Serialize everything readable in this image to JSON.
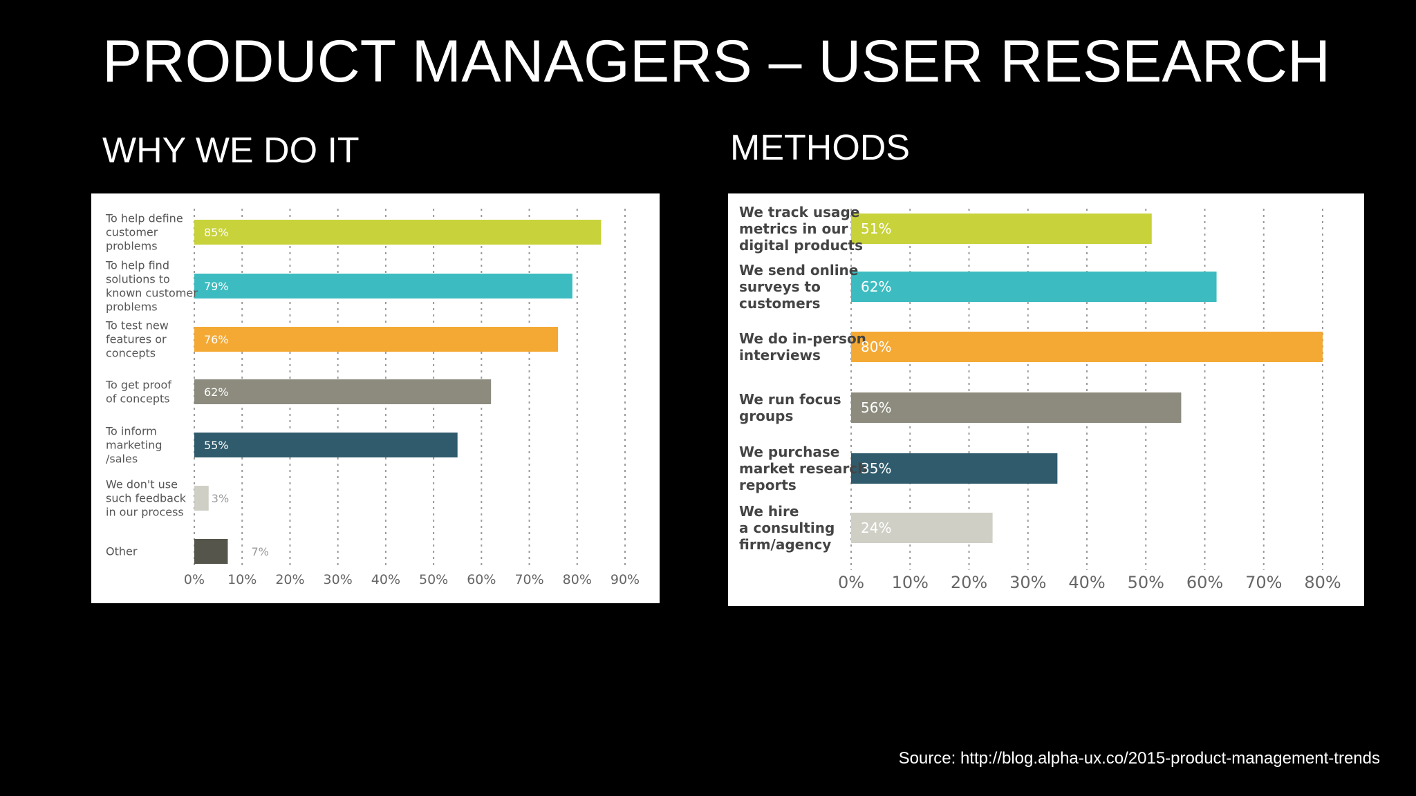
{
  "title": "PRODUCT MANAGERS – USER RESEARCH",
  "left_heading": "WHY WE DO IT",
  "right_heading": "METHODS",
  "source": "Source: http://blog.alpha-ux.co/2015-product-management-trends",
  "colors": {
    "background": "#000000",
    "panel": "#ffffff",
    "grid": "#9a9a9a",
    "axis_text": "#666666"
  },
  "chart_data": [
    {
      "type": "bar",
      "orientation": "horizontal",
      "categories": [
        [
          "To help define",
          "customer",
          "problems"
        ],
        [
          "To help find",
          "solutions to",
          "known customer",
          "problems"
        ],
        [
          "To test new",
          "features or",
          "concepts"
        ],
        [
          "To get proof",
          "of concepts"
        ],
        [
          "To inform",
          "marketing",
          "/sales"
        ],
        [
          "We don't use",
          "such feedback",
          "in our process"
        ],
        [
          "Other"
        ]
      ],
      "values": [
        85,
        79,
        76,
        62,
        55,
        3,
        7
      ],
      "value_labels": [
        "85%",
        "79%",
        "76%",
        "62%",
        "55%",
        "3%",
        "7%"
      ],
      "bar_colors": [
        "#c8d23a",
        "#3cbcc0",
        "#f4a935",
        "#8c8b7e",
        "#2f5b6c",
        "#cfcfc6",
        "#55554b"
      ],
      "label_outside": [
        false,
        false,
        false,
        false,
        false,
        true,
        true
      ],
      "xlim": [
        0,
        90
      ],
      "xticks": [
        "0%",
        "10%",
        "20%",
        "30%",
        "40%",
        "50%",
        "60%",
        "70%",
        "80%",
        "90%"
      ],
      "grid": true
    },
    {
      "type": "bar",
      "orientation": "horizontal",
      "categories": [
        [
          "We track usage",
          "metrics in our",
          "digital products"
        ],
        [
          "We send online",
          "surveys to",
          "customers"
        ],
        [
          "We do in-person",
          "interviews"
        ],
        [
          "We run focus",
          "groups"
        ],
        [
          "We purchase",
          "market research",
          "reports"
        ],
        [
          "We hire",
          "a consulting",
          "firm/agency"
        ]
      ],
      "values": [
        51,
        62,
        80,
        56,
        35,
        24
      ],
      "value_labels": [
        "51%",
        "62%",
        "80%",
        "56%",
        "35%",
        "24%"
      ],
      "bar_colors": [
        "#c8d23a",
        "#3cbcc0",
        "#f4a935",
        "#8c8b7e",
        "#2f5b6c",
        "#cfcfc6"
      ],
      "label_outside": [
        false,
        false,
        false,
        false,
        false,
        false
      ],
      "xlim": [
        0,
        80
      ],
      "xticks": [
        "0%",
        "10%",
        "20%",
        "30%",
        "40%",
        "50%",
        "60%",
        "70%",
        "80%"
      ],
      "grid": true
    }
  ]
}
